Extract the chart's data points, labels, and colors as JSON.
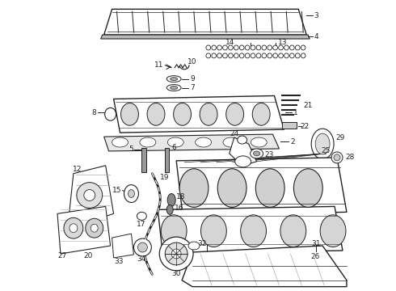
{
  "bg_color": "#ffffff",
  "lc": "#222222",
  "figsize": [
    4.9,
    3.6
  ],
  "dpi": 100,
  "fs": 6.5
}
